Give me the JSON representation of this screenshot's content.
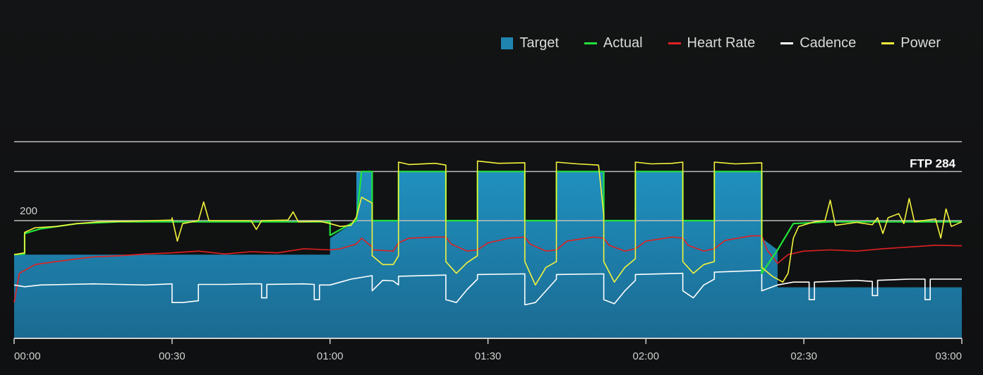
{
  "legend": [
    {
      "label": "Target",
      "kind": "box",
      "color": "#1f84b0"
    },
    {
      "label": "Actual",
      "kind": "line",
      "color": "#22e33a"
    },
    {
      "label": "Heart Rate",
      "kind": "line",
      "color": "#e02020"
    },
    {
      "label": "Cadence",
      "kind": "line",
      "color": "#ffffff"
    },
    {
      "label": "Power",
      "kind": "line",
      "color": "#f4f43c"
    }
  ],
  "chart_data": {
    "type": "area",
    "ylim": [
      0,
      335
    ],
    "xlim": [
      0,
      180
    ],
    "x_ticks": [
      {
        "t": 0,
        "label": "00:00"
      },
      {
        "t": 30,
        "label": "00:30"
      },
      {
        "t": 60,
        "label": "01:00"
      },
      {
        "t": 90,
        "label": "01:30"
      },
      {
        "t": 120,
        "label": "02:00"
      },
      {
        "t": 150,
        "label": "02:30"
      },
      {
        "t": 180,
        "label": "03:00"
      }
    ],
    "y_gridlines": [
      {
        "value": 200,
        "label": "200"
      },
      {
        "value": 284,
        "label": "FTP 284"
      },
      {
        "value": 335,
        "label": ""
      }
    ],
    "series": [
      {
        "name": "Target",
        "color": "#1f84b0",
        "style": "step-area",
        "points": [
          [
            0,
            142
          ],
          [
            60,
            142
          ],
          [
            60,
            170
          ],
          [
            65,
            200
          ],
          [
            65,
            284
          ],
          [
            68,
            284
          ],
          [
            68,
            200
          ],
          [
            73,
            200
          ],
          [
            73,
            284
          ],
          [
            82,
            284
          ],
          [
            82,
            200
          ],
          [
            88,
            200
          ],
          [
            88,
            284
          ],
          [
            97,
            284
          ],
          [
            97,
            200
          ],
          [
            103,
            200
          ],
          [
            103,
            284
          ],
          [
            112,
            284
          ],
          [
            112,
            200
          ],
          [
            118,
            200
          ],
          [
            118,
            284
          ],
          [
            127,
            284
          ],
          [
            127,
            200
          ],
          [
            133,
            200
          ],
          [
            133,
            284
          ],
          [
            142,
            284
          ],
          [
            142,
            170
          ],
          [
            145,
            150
          ],
          [
            145,
            86
          ],
          [
            180,
            86
          ]
        ]
      },
      {
        "name": "Actual",
        "color": "#22e33a",
        "style": "line",
        "points": [
          [
            0,
            142
          ],
          [
            2,
            143
          ],
          [
            2,
            178
          ],
          [
            5,
            186
          ],
          [
            12,
            195
          ],
          [
            20,
            198
          ],
          [
            40,
            198
          ],
          [
            60,
            198
          ],
          [
            60,
            175
          ],
          [
            65,
            200
          ],
          [
            66,
            284
          ],
          [
            68,
            284
          ],
          [
            68,
            200
          ],
          [
            73,
            200
          ],
          [
            73,
            284
          ],
          [
            82,
            284
          ],
          [
            82,
            200
          ],
          [
            88,
            200
          ],
          [
            88,
            284
          ],
          [
            97,
            284
          ],
          [
            97,
            200
          ],
          [
            103,
            200
          ],
          [
            103,
            284
          ],
          [
            112,
            284
          ],
          [
            112,
            200
          ],
          [
            118,
            200
          ],
          [
            118,
            284
          ],
          [
            127,
            284
          ],
          [
            127,
            200
          ],
          [
            133,
            200
          ],
          [
            133,
            284
          ],
          [
            142,
            284
          ],
          [
            142,
            110
          ],
          [
            145,
            150
          ],
          [
            148,
            195
          ],
          [
            155,
            198
          ],
          [
            180,
            198
          ]
        ]
      },
      {
        "name": "Power",
        "color": "#f4f43c",
        "style": "line",
        "points": [
          [
            0,
            142
          ],
          [
            2,
            145
          ],
          [
            2,
            180
          ],
          [
            4,
            188
          ],
          [
            8,
            190
          ],
          [
            12,
            195
          ],
          [
            16,
            198
          ],
          [
            22,
            199
          ],
          [
            30,
            201
          ],
          [
            30,
            205
          ],
          [
            31,
            165
          ],
          [
            32,
            195
          ],
          [
            35,
            200
          ],
          [
            36,
            232
          ],
          [
            37,
            200
          ],
          [
            45,
            200
          ],
          [
            46,
            185
          ],
          [
            47,
            200
          ],
          [
            52,
            201
          ],
          [
            53,
            215
          ],
          [
            54,
            198
          ],
          [
            58,
            199
          ],
          [
            60,
            195
          ],
          [
            62,
            190
          ],
          [
            64,
            192
          ],
          [
            65,
            206
          ],
          [
            66,
            240
          ],
          [
            68,
            230
          ],
          [
            68,
            140
          ],
          [
            70,
            125
          ],
          [
            72,
            125
          ],
          [
            73,
            140
          ],
          [
            73,
            300
          ],
          [
            75,
            296
          ],
          [
            80,
            298
          ],
          [
            82,
            295
          ],
          [
            82,
            130
          ],
          [
            84,
            110
          ],
          [
            86,
            128
          ],
          [
            88,
            140
          ],
          [
            88,
            302
          ],
          [
            92,
            298
          ],
          [
            97,
            299
          ],
          [
            97,
            130
          ],
          [
            99,
            90
          ],
          [
            101,
            120
          ],
          [
            103,
            130
          ],
          [
            103,
            300
          ],
          [
            107,
            297
          ],
          [
            111,
            295
          ],
          [
            112,
            210
          ],
          [
            112,
            130
          ],
          [
            114,
            95
          ],
          [
            116,
            120
          ],
          [
            118,
            135
          ],
          [
            118,
            300
          ],
          [
            121,
            297
          ],
          [
            125,
            298
          ],
          [
            127,
            300
          ],
          [
            127,
            130
          ],
          [
            129,
            110
          ],
          [
            131,
            125
          ],
          [
            133,
            130
          ],
          [
            133,
            300
          ],
          [
            137,
            297
          ],
          [
            142,
            299
          ],
          [
            142,
            120
          ],
          [
            144,
            105
          ],
          [
            146,
            95
          ],
          [
            147,
            110
          ],
          [
            148,
            170
          ],
          [
            149,
            190
          ],
          [
            152,
            198
          ],
          [
            154,
            200
          ],
          [
            155,
            235
          ],
          [
            156,
            192
          ],
          [
            160,
            197
          ],
          [
            163,
            193
          ],
          [
            164,
            205
          ],
          [
            165,
            178
          ],
          [
            166,
            205
          ],
          [
            168,
            212
          ],
          [
            169,
            195
          ],
          [
            170,
            238
          ],
          [
            171,
            198
          ],
          [
            175,
            203
          ],
          [
            176,
            170
          ],
          [
            177,
            220
          ],
          [
            178,
            190
          ],
          [
            180,
            198
          ]
        ]
      },
      {
        "name": "Heart Rate",
        "color": "#e02020",
        "style": "line",
        "points": [
          [
            0,
            60
          ],
          [
            1,
            110
          ],
          [
            4,
            125
          ],
          [
            8,
            130
          ],
          [
            15,
            138
          ],
          [
            20,
            140
          ],
          [
            25,
            143
          ],
          [
            30,
            145
          ],
          [
            35,
            148
          ],
          [
            40,
            143
          ],
          [
            45,
            147
          ],
          [
            50,
            145
          ],
          [
            55,
            152
          ],
          [
            60,
            150
          ],
          [
            62,
            152
          ],
          [
            65,
            160
          ],
          [
            66,
            170
          ],
          [
            68,
            155
          ],
          [
            68,
            150
          ],
          [
            72,
            148
          ],
          [
            73,
            162
          ],
          [
            75,
            170
          ],
          [
            80,
            172
          ],
          [
            82,
            172
          ],
          [
            83,
            160
          ],
          [
            86,
            148
          ],
          [
            88,
            150
          ],
          [
            90,
            162
          ],
          [
            94,
            170
          ],
          [
            97,
            172
          ],
          [
            98,
            160
          ],
          [
            101,
            148
          ],
          [
            103,
            150
          ],
          [
            105,
            165
          ],
          [
            110,
            172
          ],
          [
            112,
            170
          ],
          [
            113,
            158
          ],
          [
            116,
            148
          ],
          [
            118,
            152
          ],
          [
            120,
            165
          ],
          [
            125,
            172
          ],
          [
            127,
            170
          ],
          [
            128,
            158
          ],
          [
            131,
            148
          ],
          [
            133,
            152
          ],
          [
            135,
            166
          ],
          [
            140,
            174
          ],
          [
            142,
            174
          ],
          [
            143,
            150
          ],
          [
            145,
            127
          ],
          [
            147,
            142
          ],
          [
            150,
            148
          ],
          [
            155,
            150
          ],
          [
            160,
            148
          ],
          [
            165,
            152
          ],
          [
            170,
            155
          ],
          [
            175,
            158
          ],
          [
            180,
            157
          ]
        ]
      },
      {
        "name": "Cadence",
        "color": "#ffffff",
        "style": "line",
        "points": [
          [
            0,
            90
          ],
          [
            2,
            87
          ],
          [
            5,
            90
          ],
          [
            10,
            91
          ],
          [
            15,
            92
          ],
          [
            20,
            91
          ],
          [
            25,
            90
          ],
          [
            30,
            92
          ],
          [
            30,
            60
          ],
          [
            32,
            60
          ],
          [
            35,
            63
          ],
          [
            35,
            91
          ],
          [
            40,
            91
          ],
          [
            45,
            92
          ],
          [
            47,
            92
          ],
          [
            47,
            68
          ],
          [
            48,
            68
          ],
          [
            48,
            91
          ],
          [
            55,
            92
          ],
          [
            57,
            91
          ],
          [
            57,
            65
          ],
          [
            58,
            65
          ],
          [
            58,
            90
          ],
          [
            60,
            90
          ],
          [
            62,
            95
          ],
          [
            64,
            100
          ],
          [
            66,
            103
          ],
          [
            68,
            106
          ],
          [
            68,
            80
          ],
          [
            70,
            98
          ],
          [
            72,
            97
          ],
          [
            73,
            90
          ],
          [
            73,
            105
          ],
          [
            82,
            107
          ],
          [
            82,
            65
          ],
          [
            84,
            60
          ],
          [
            86,
            82
          ],
          [
            88,
            100
          ],
          [
            88,
            108
          ],
          [
            97,
            109
          ],
          [
            97,
            56
          ],
          [
            99,
            60
          ],
          [
            101,
            80
          ],
          [
            103,
            100
          ],
          [
            103,
            108
          ],
          [
            112,
            109
          ],
          [
            112,
            65
          ],
          [
            114,
            58
          ],
          [
            116,
            80
          ],
          [
            118,
            98
          ],
          [
            118,
            108
          ],
          [
            127,
            110
          ],
          [
            127,
            80
          ],
          [
            129,
            68
          ],
          [
            131,
            90
          ],
          [
            133,
            100
          ],
          [
            133,
            112
          ],
          [
            142,
            115
          ],
          [
            142,
            80
          ],
          [
            145,
            90
          ],
          [
            148,
            95
          ],
          [
            151,
            95
          ],
          [
            151,
            65
          ],
          [
            152,
            65
          ],
          [
            152,
            95
          ],
          [
            160,
            98
          ],
          [
            163,
            96
          ],
          [
            163,
            72
          ],
          [
            164,
            72
          ],
          [
            164,
            98
          ],
          [
            170,
            100
          ],
          [
            173,
            100
          ],
          [
            173,
            65
          ],
          [
            174,
            65
          ],
          [
            174,
            100
          ],
          [
            180,
            100
          ]
        ]
      }
    ]
  }
}
